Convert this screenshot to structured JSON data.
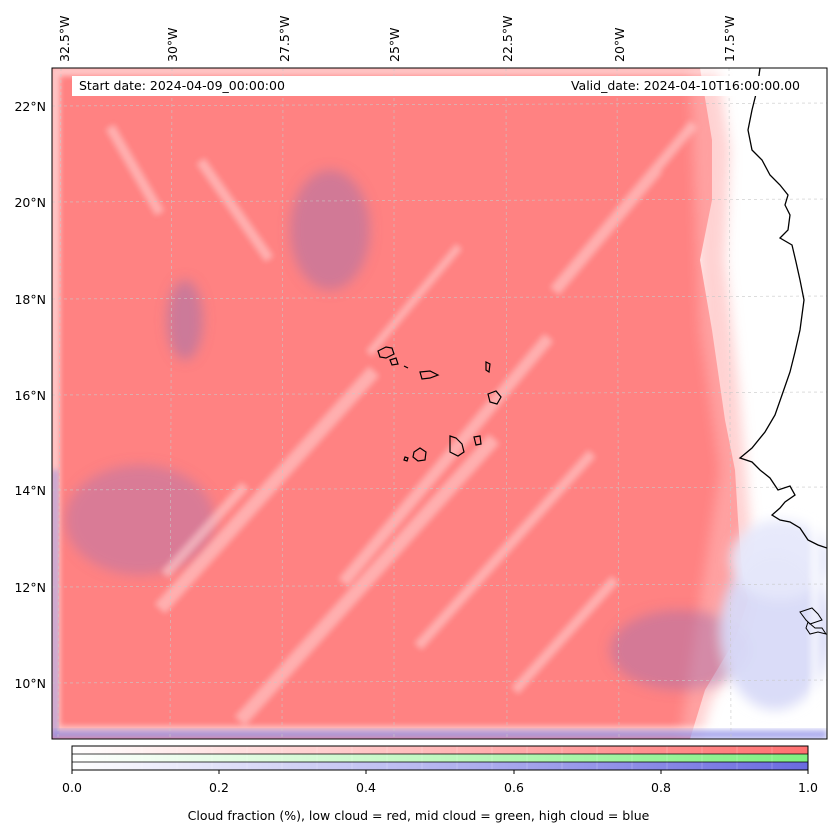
{
  "map": {
    "start_date_text": "Start date: 2024-04-09_00:00:00",
    "valid_date_text": "Valid_date: 2024-04-10T16:00:00.00",
    "lon_labels": [
      "32.5°W",
      "30°W",
      "27.5°W",
      "25°W",
      "22.5°W",
      "20°W",
      "17.5°W"
    ],
    "lat_labels": [
      "22°N",
      "20°N",
      "18°N",
      "16°N",
      "14°N",
      "12°N",
      "10°N"
    ],
    "colors": {
      "low_cloud": "#ff7f7f",
      "mid_cloud": "#80ff80",
      "high_cloud": "#8080ff",
      "coastline": "#000000"
    }
  },
  "colorbar": {
    "ticks": [
      "0.0",
      "0.2",
      "0.4",
      "0.6",
      "0.8",
      "1.0"
    ],
    "caption": "Cloud fraction (%), low cloud = red, mid cloud = green, high cloud = blue"
  }
}
